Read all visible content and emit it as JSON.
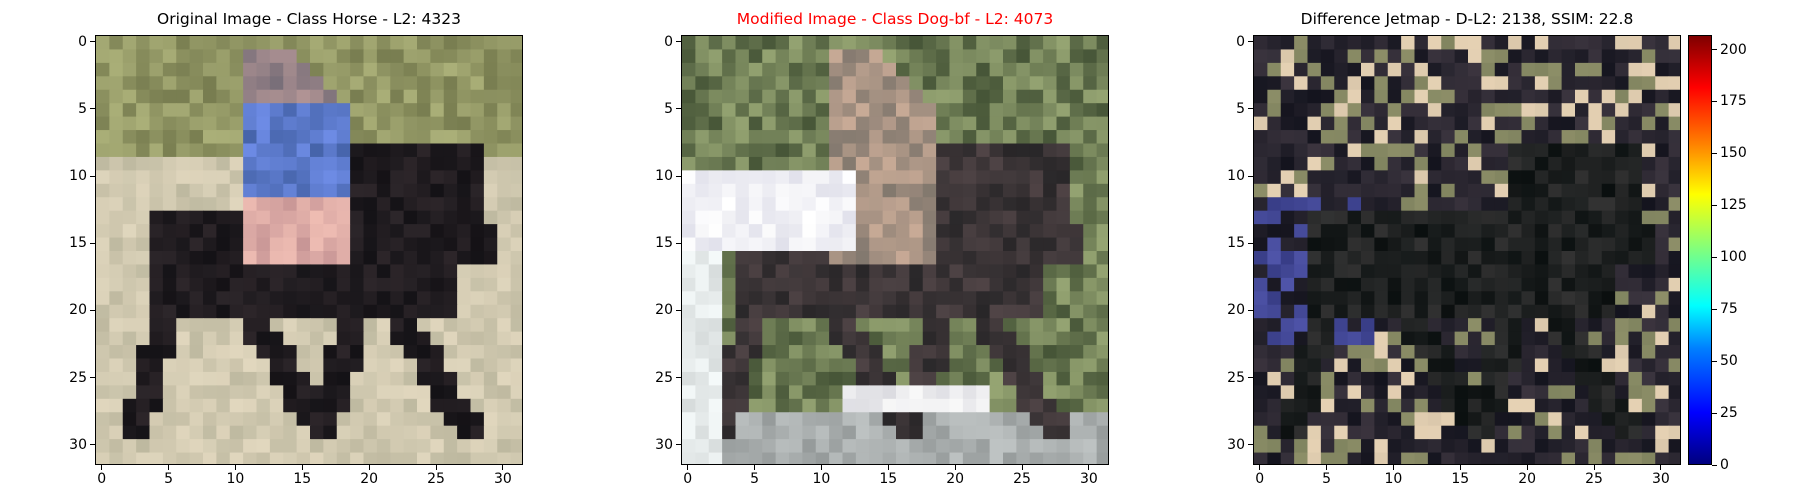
{
  "panels": [
    {
      "title": "Original Image - Class Horse - L2: 4323",
      "title_color": "#000000",
      "content": "horse",
      "xticks": [
        "0",
        "5",
        "10",
        "15",
        "20",
        "25",
        "30"
      ],
      "yticks": [
        "0",
        "5",
        "10",
        "15",
        "20",
        "25",
        "30"
      ]
    },
    {
      "title": "Modified Image - Class Dog-bf - L2: 4073",
      "title_color": "#ff0000",
      "content": "modified",
      "xticks": [
        "0",
        "5",
        "10",
        "15",
        "20",
        "25",
        "30"
      ],
      "yticks": [
        "0",
        "5",
        "10",
        "15",
        "20",
        "25",
        "30"
      ]
    },
    {
      "title": "Difference Jetmap - D-L2: 2138, SSIM: 22.8",
      "title_color": "#000000",
      "content": "difference",
      "xticks": [
        "0",
        "5",
        "10",
        "15",
        "20",
        "25",
        "30"
      ],
      "yticks": [
        "0",
        "5",
        "10",
        "15",
        "20",
        "25",
        "30"
      ]
    }
  ],
  "colorbar": {
    "colormap": "jet",
    "range": [
      0,
      207
    ],
    "ticks": [
      "0",
      "25",
      "50",
      "75",
      "100",
      "125",
      "150",
      "175",
      "200"
    ]
  },
  "image_grid": {
    "size": [
      32,
      32
    ]
  }
}
